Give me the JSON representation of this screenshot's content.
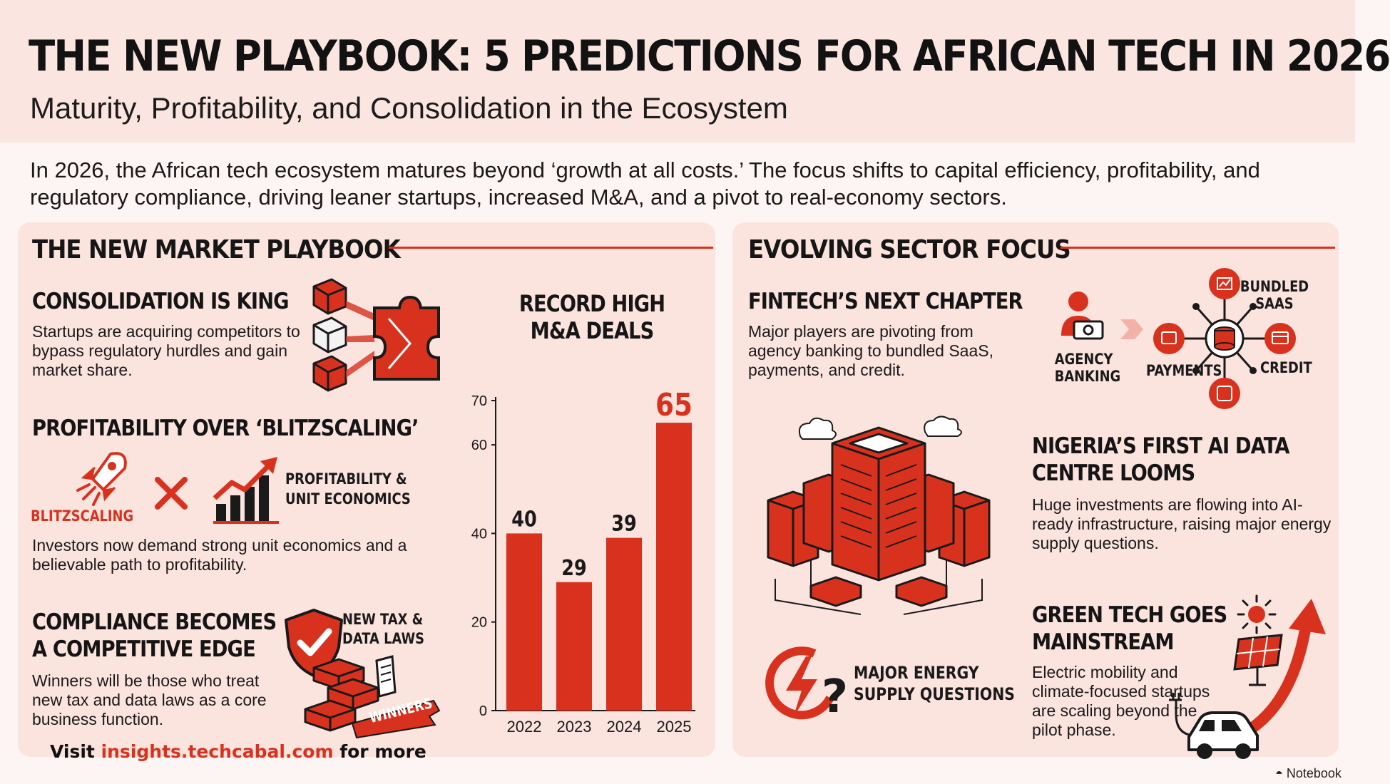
{
  "header": {
    "title": "THE NEW PLAYBOOK: 5 PREDICTIONS FOR AFRICAN TECH IN 2026",
    "subtitle": "Maturity, Profitability, and Consolidation in the Ecosystem"
  },
  "intro": "In 2026, the African tech ecosystem matures beyond ‘growth at all costs.’ The focus shifts to capital efficiency, profitability, and regulatory compliance, driving leaner startups, increased M&A, and a pivot to real-economy sectors.",
  "left_panel": {
    "title": "THE NEW MARKET PLAYBOOK",
    "consolidation": {
      "heading": "CONSOLIDATION IS KING",
      "body": "Startups are acquiring competitors to bypass regulatory hurdles and gain market share.",
      "icon": "puzzle-merge-icon"
    },
    "profitability": {
      "heading": "PROFITABILITY OVER ‘BLITZSCALING’",
      "blitz_label": "BLITZSCALING",
      "unit_label_1": "PROFITABILITY &",
      "unit_label_2": "UNIT ECONOMICS",
      "body": "Investors now demand strong unit economics and a believable path to profitability.",
      "icons": [
        "rocket-icon",
        "cross-icon",
        "growth-chart-icon"
      ]
    },
    "compliance": {
      "heading_1": "COMPLIANCE BECOMES",
      "heading_2": "A COMPETITIVE EDGE",
      "body": "Winners will be those who treat new tax and data laws as a core business function.",
      "laws_label_1": "NEW TAX &",
      "laws_label_2": "DATA LAWS",
      "ribbon_label": "WINNERS",
      "icons": [
        "shield-check-icon",
        "server-stack-icon",
        "document-icon"
      ]
    }
  },
  "chart_data": {
    "type": "bar",
    "title": "RECORD HIGH M&A DEALS",
    "title_lines": [
      "RECORD HIGH",
      "M&A DEALS"
    ],
    "categories": [
      "2022",
      "2023",
      "2024",
      "2025"
    ],
    "values": [
      40,
      29,
      39,
      65
    ],
    "yticks": [
      0,
      20,
      40,
      60,
      70
    ],
    "ylim": [
      0,
      70
    ],
    "xlabel": "",
    "ylabel": "",
    "grid": false,
    "bar_color": "#d8321f",
    "highlight_color": "#d8321f"
  },
  "right_panel": {
    "title": "EVOLVING SECTOR FOCUS",
    "fintech": {
      "heading": "FINTECH’S NEXT CHAPTER",
      "body": "Major players are pivoting from agency banking to bundled SaaS, payments, and credit.",
      "agency_label_1": "AGENCY",
      "agency_label_2": "BANKING",
      "hub_labels": {
        "bundled_1": "BUNDLED",
        "bundled_2": "SAAS",
        "payments": "PAYMENTS",
        "credit": "CREDIT"
      },
      "icons": [
        "person-cash-icon",
        "arrow-right-icon",
        "database-hub-icon"
      ]
    },
    "datacentre": {
      "heading_1": "NIGERIA’S FIRST AI DATA",
      "heading_2": "CENTRE LOOMS",
      "body": "Huge investments are flowing into AI-ready infrastructure, raising major energy supply questions.",
      "icon": "data-centre-icon"
    },
    "energy": {
      "label_1": "MAJOR ENERGY",
      "label_2": "SUPPLY QUESTIONS",
      "icon": "lightning-question-icon"
    },
    "greentech": {
      "heading_1": "GREEN TECH GOES",
      "heading_2": "MAINSTREAM",
      "body": "Electric mobility and climate-focused startups are scaling beyond the pilot phase.",
      "icons": [
        "sun-icon",
        "solar-panel-icon",
        "electric-car-icon"
      ]
    }
  },
  "footer": {
    "prefix": "Visit ",
    "link": "insights.techcabal.com",
    "suffix": " for more"
  },
  "brand": "Notebook",
  "colors": {
    "accent": "#d8321f",
    "panel": "#fbe3de",
    "background": "#fdf5f3",
    "header": "#fbe5e0"
  }
}
